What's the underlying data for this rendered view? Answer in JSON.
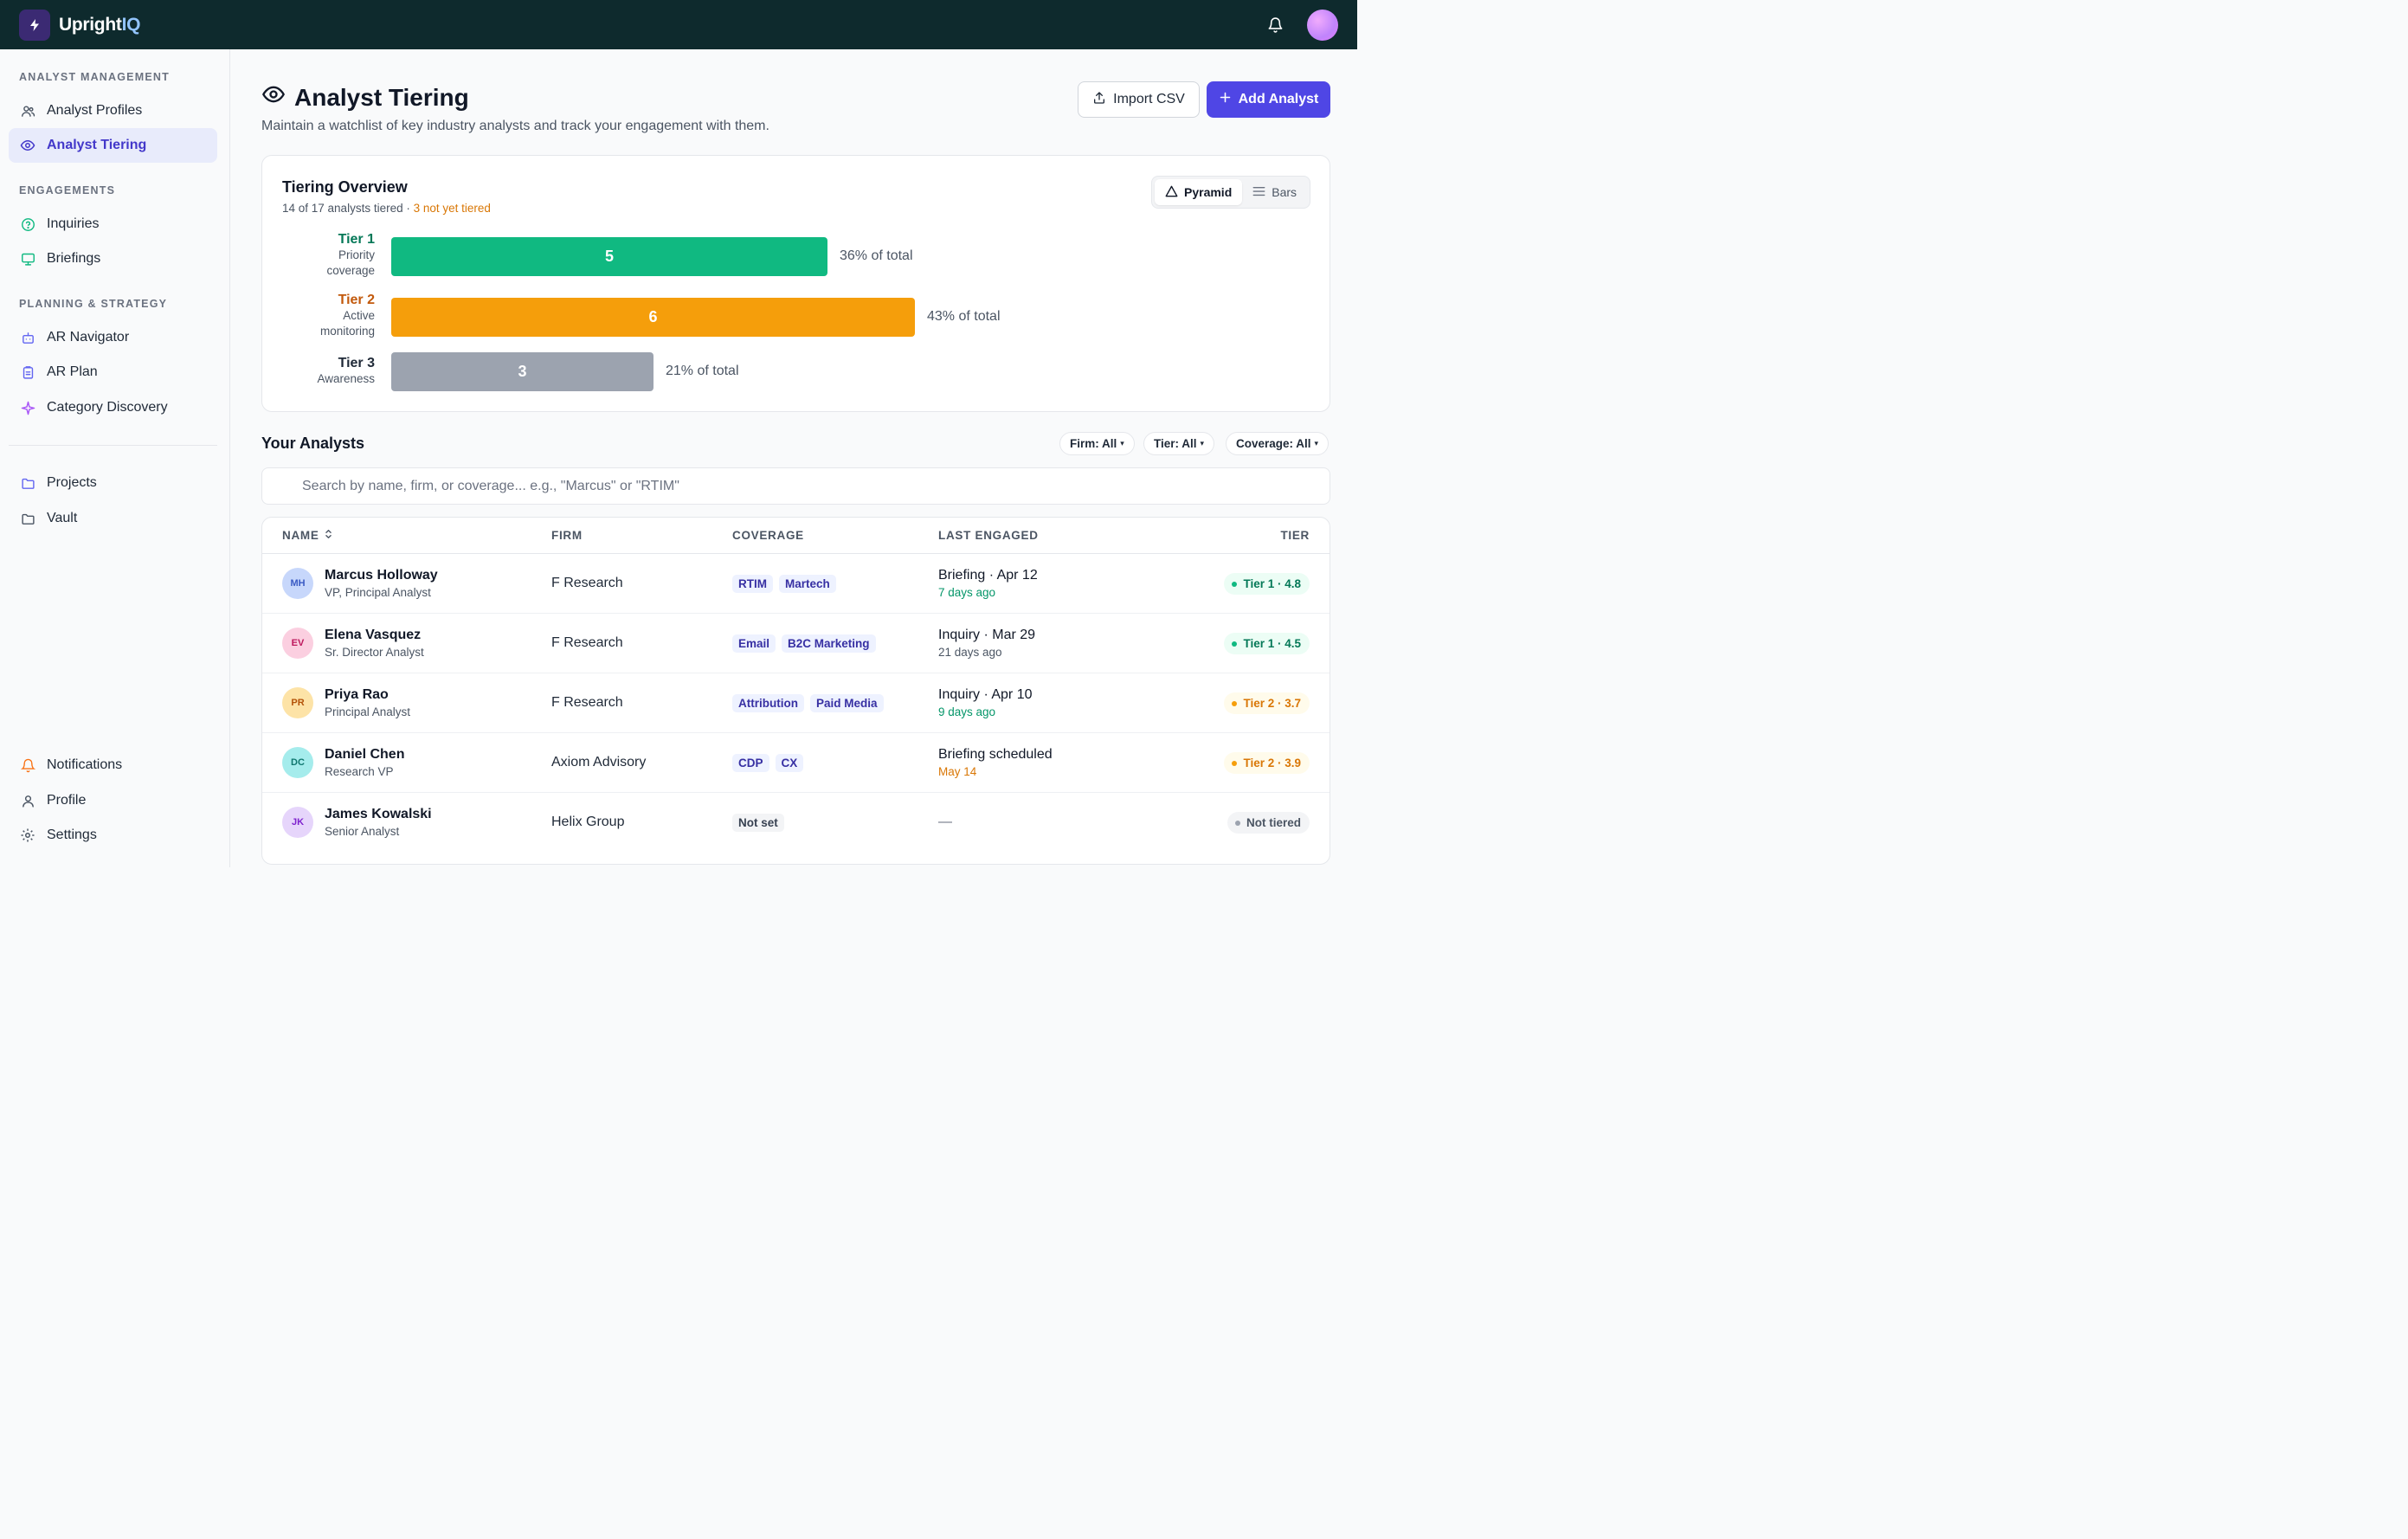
{
  "app": {
    "name_main": "Upright",
    "name_accent": "IQ"
  },
  "sidebar": {
    "sections": [
      "ANALYST MANAGEMENT",
      "ENGAGEMENTS",
      "PLANNING & STRATEGY"
    ],
    "items": [
      {
        "label": "Analyst Profiles",
        "icon": "users-icon"
      },
      {
        "label": "Analyst Tiering",
        "icon": "eye-icon",
        "active": true
      },
      {
        "label": "Inquiries",
        "icon": "question-circle-icon"
      },
      {
        "label": "Briefings",
        "icon": "monitor-icon"
      },
      {
        "label": "AR Navigator",
        "icon": "robot-icon"
      },
      {
        "label": "AR Plan",
        "icon": "clipboard-icon"
      },
      {
        "label": "Category Discovery",
        "icon": "sparkle-icon"
      },
      {
        "label": "Projects",
        "icon": "folder-icon"
      },
      {
        "label": "Vault",
        "icon": "folder-icon"
      }
    ],
    "bottom": [
      {
        "label": "Notifications",
        "icon": "bell-icon"
      },
      {
        "label": "Profile",
        "icon": "user-icon"
      },
      {
        "label": "Settings",
        "icon": "gear-icon"
      }
    ]
  },
  "header": {
    "title": "Analyst Tiering",
    "subtitle": "Maintain a watchlist of key industry analysts and track your engagement with them.",
    "import_label": "Import CSV",
    "add_label": "Add Analyst"
  },
  "overview": {
    "title": "Tiering Overview",
    "summary": "14 of 17 analysts tiered ·",
    "untiered": "3 not yet tiered",
    "view_pyramid": "Pyramid",
    "view_bars": "Bars",
    "active_view": "Pyramid"
  },
  "chart_data": {
    "type": "bar",
    "orientation": "horizontal",
    "categories": [
      "Tier 1",
      "Tier 2",
      "Tier 3"
    ],
    "descriptions": [
      "Priority coverage",
      "Active monitoring",
      "Awareness"
    ],
    "values": [
      5,
      6,
      3
    ],
    "percent_labels": [
      "36% of total",
      "43% of total",
      "21% of total"
    ],
    "colors": [
      "#10b981",
      "#f59e0b",
      "#9ca3af"
    ],
    "label_colors": [
      "#047857",
      "#c2590c",
      "#1f2937"
    ]
  },
  "analysts": {
    "title": "Your Analysts",
    "filters": [
      "Firm: All",
      "Tier: All",
      "Coverage: All"
    ],
    "search_placeholder": "Search by name, firm, or coverage... e.g., \"Marcus\" or \"RTIM\"",
    "columns": [
      "NAME",
      "FIRM",
      "COVERAGE",
      "LAST ENGAGED",
      "TIER"
    ],
    "rows": [
      {
        "initials": "MH",
        "name": "Marcus Holloway",
        "role": "VP, Principal Analyst",
        "firm": "F Research",
        "coverage": [
          "RTIM",
          "Martech"
        ],
        "engaged": "Briefing · Apr 12",
        "engaged_sub": "7 days ago",
        "sub_color": "#059669",
        "tier": "Tier 1 · 4.8",
        "tier_class": "t1",
        "av_bg": "#c7d7fb",
        "av_fg": "#3b5bc4"
      },
      {
        "initials": "EV",
        "name": "Elena Vasquez",
        "role": "Sr. Director Analyst",
        "firm": "F Research",
        "coverage": [
          "Email",
          "B2C Marketing"
        ],
        "engaged": "Inquiry · Mar 29",
        "engaged_sub": "21 days ago",
        "sub_color": "#4b5563",
        "tier": "Tier 1 · 4.5",
        "tier_class": "t1",
        "av_bg": "#fbcfe0",
        "av_fg": "#be185d"
      },
      {
        "initials": "PR",
        "name": "Priya Rao",
        "role": "Principal Analyst",
        "firm": "F Research",
        "coverage": [
          "Attribution",
          "Paid Media"
        ],
        "engaged": "Inquiry · Apr 10",
        "engaged_sub": "9 days ago",
        "sub_color": "#059669",
        "tier": "Tier 2 · 3.7",
        "tier_class": "t2",
        "av_bg": "#fde3a7",
        "av_fg": "#b45309"
      },
      {
        "initials": "DC",
        "name": "Daniel Chen",
        "role": "Research VP",
        "firm": "Axiom Advisory",
        "coverage": [
          "CDP",
          "CX"
        ],
        "engaged": "Briefing scheduled",
        "engaged_sub": "May 14",
        "sub_color": "#d97706",
        "tier": "Tier 2 · 3.9",
        "tier_class": "t2",
        "av_bg": "#a5ecec",
        "av_fg": "#0f766e"
      },
      {
        "initials": "JK",
        "name": "James Kowalski",
        "role": "Senior Analyst",
        "firm": "Helix Group",
        "coverage": [
          "Not set"
        ],
        "engaged": "—",
        "engaged_sub": "",
        "sub_color": "#4b5563",
        "tier": "Not tiered",
        "tier_class": "tn0",
        "av_bg": "#e6d5fb",
        "av_fg": "#7e22ce"
      }
    ]
  }
}
